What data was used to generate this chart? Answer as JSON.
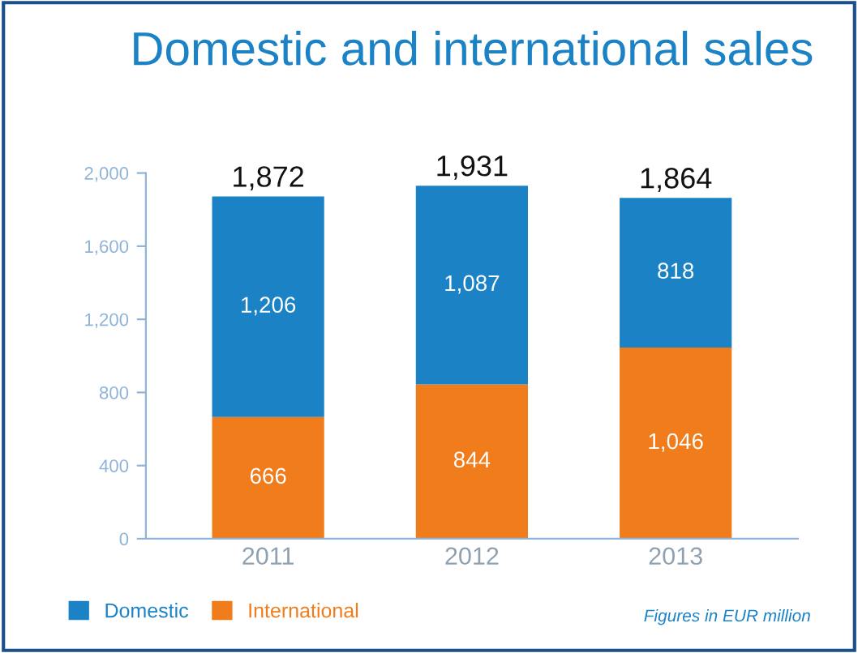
{
  "chart_data": {
    "type": "bar",
    "title": "Domestic and international sales",
    "stacked": true,
    "categories": [
      "2011",
      "2012",
      "2013"
    ],
    "series": [
      {
        "name": "International",
        "color": "#f07c1b",
        "values": [
          666,
          844,
          1046
        ],
        "value_labels": [
          "666",
          "844",
          "1,046"
        ]
      },
      {
        "name": "Domestic",
        "color": "#1b82c6",
        "values": [
          1206,
          1087,
          818
        ],
        "value_labels": [
          "1,206",
          "1,087",
          "818"
        ]
      }
    ],
    "totals": [
      "1,872",
      "1,931",
      "1,864"
    ],
    "ylim": [
      0,
      2000
    ],
    "yticks": [
      {
        "value": 0,
        "label": "0"
      },
      {
        "value": 400,
        "label": "400"
      },
      {
        "value": 800,
        "label": "800"
      },
      {
        "value": 1200,
        "label": "1,200"
      },
      {
        "value": 1600,
        "label": "1,600"
      },
      {
        "value": 2000,
        "label": "2,000"
      }
    ],
    "grid": false,
    "legend": "bottom left",
    "annotations": [
      "Figures in EUR million"
    ]
  }
}
